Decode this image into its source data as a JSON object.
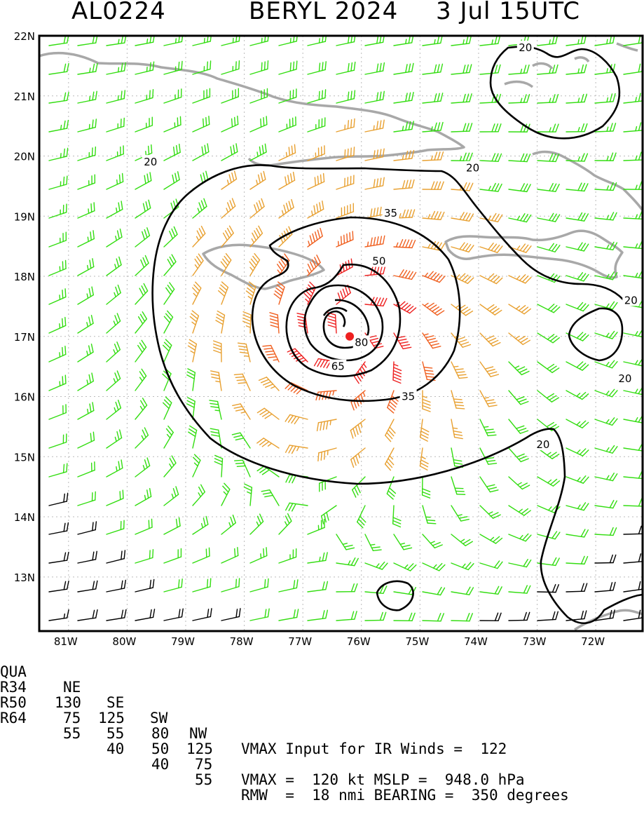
{
  "title": {
    "storm_id": "AL0224",
    "storm_name_year": "BERYL 2024",
    "datetime": "3 Jul 15UTC"
  },
  "map": {
    "lon_range": [
      -81.5,
      -71.2
    ],
    "lat_range": [
      12.1,
      22.0
    ],
    "lat_labels": [
      "22N",
      "21N",
      "20N",
      "19N",
      "18N",
      "17N",
      "16N",
      "15N",
      "14N",
      "13N"
    ],
    "lon_labels": [
      "81W",
      "80W",
      "79W",
      "78W",
      "77W",
      "76W",
      "75W",
      "74W",
      "73W",
      "72W"
    ],
    "center": {
      "lon": -76.2,
      "lat": 17.0
    },
    "contour_labels": [
      {
        "text": "20",
        "lon": -73.2,
        "lat": 21.8
      },
      {
        "text": "20",
        "lon": -79.6,
        "lat": 19.9
      },
      {
        "text": "20",
        "lon": -74.1,
        "lat": 19.8
      },
      {
        "text": "35",
        "lon": -75.5,
        "lat": 19.05
      },
      {
        "text": "50",
        "lon": -75.7,
        "lat": 18.25
      },
      {
        "text": "80",
        "lon": -76.0,
        "lat": 16.9
      },
      {
        "text": "65",
        "lon": -76.4,
        "lat": 16.5
      },
      {
        "text": "35",
        "lon": -75.2,
        "lat": 16.0
      },
      {
        "text": "20",
        "lon": -72.9,
        "lat": 15.2
      },
      {
        "text": "20",
        "lon": -71.5,
        "lat": 16.3
      },
      {
        "text": "20",
        "lon": -71.4,
        "lat": 17.6
      }
    ],
    "colors": {
      "weak": "#000000",
      "ts": "#33dd11",
      "strong": "#e8a030",
      "hurricane": "#f06020",
      "major": "#ee2020",
      "land": "#a8a8a8",
      "contour": "#000000"
    }
  },
  "info": {
    "header": [
      "QUA",
      "NE",
      "SE",
      "SW",
      "NW"
    ],
    "r34": [
      "R34",
      "130",
      "125",
      "80",
      "125"
    ],
    "r50": [
      "R50",
      "75",
      "55",
      "50",
      "75"
    ],
    "r64": [
      "R64",
      "55",
      "40",
      "40",
      "55"
    ],
    "vmax_input": "VMAX Input for IR Winds =  122",
    "vmax_line": "VMAX =  120 kt MSLP =  948.0 hPa",
    "rmw_line": "RMW  =  18 nmi BEARING =  350 degrees"
  }
}
